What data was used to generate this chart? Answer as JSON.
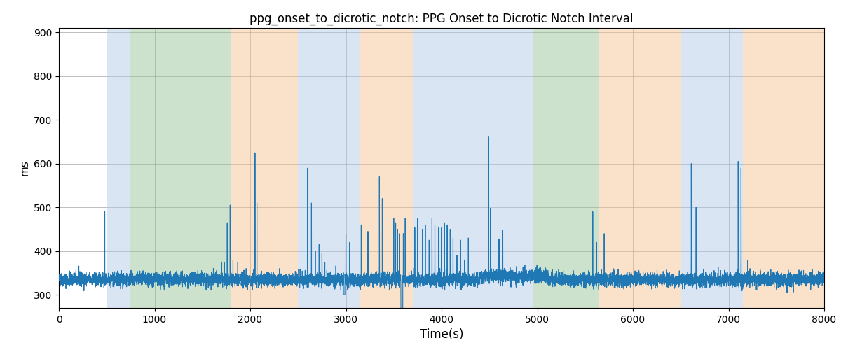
{
  "title": "ppg_onset_to_dicrotic_notch: PPG Onset to Dicrotic Notch Interval",
  "xlabel": "Time(s)",
  "ylabel": "ms",
  "xlim": [
    0,
    8000
  ],
  "ylim": [
    270,
    910
  ],
  "yticks": [
    300,
    400,
    500,
    600,
    700,
    800,
    900
  ],
  "xticks": [
    0,
    1000,
    2000,
    3000,
    4000,
    5000,
    6000,
    7000,
    8000
  ],
  "bg_color": "#ffffff",
  "line_color": "#1f77b4",
  "line_width": 0.8,
  "bands": [
    {
      "xmin": 500,
      "xmax": 750,
      "color": "#aec6e8",
      "alpha": 0.45
    },
    {
      "xmin": 750,
      "xmax": 1800,
      "color": "#90c090",
      "alpha": 0.45
    },
    {
      "xmin": 1800,
      "xmax": 2500,
      "color": "#f5c08a",
      "alpha": 0.45
    },
    {
      "xmin": 2500,
      "xmax": 3150,
      "color": "#aec6e8",
      "alpha": 0.45
    },
    {
      "xmin": 3150,
      "xmax": 3700,
      "color": "#f5c08a",
      "alpha": 0.45
    },
    {
      "xmin": 3700,
      "xmax": 4750,
      "color": "#aec6e8",
      "alpha": 0.45
    },
    {
      "xmin": 4750,
      "xmax": 4950,
      "color": "#aec6e8",
      "alpha": 0.45
    },
    {
      "xmin": 4950,
      "xmax": 5650,
      "color": "#90c090",
      "alpha": 0.45
    },
    {
      "xmin": 5650,
      "xmax": 6500,
      "color": "#f5c08a",
      "alpha": 0.45
    },
    {
      "xmin": 6500,
      "xmax": 7150,
      "color": "#aec6e8",
      "alpha": 0.45
    },
    {
      "xmin": 7150,
      "xmax": 8000,
      "color": "#f5c08a",
      "alpha": 0.45
    }
  ],
  "seed": 42,
  "n_points": 8000,
  "base_value": 335,
  "noise_std": 8
}
